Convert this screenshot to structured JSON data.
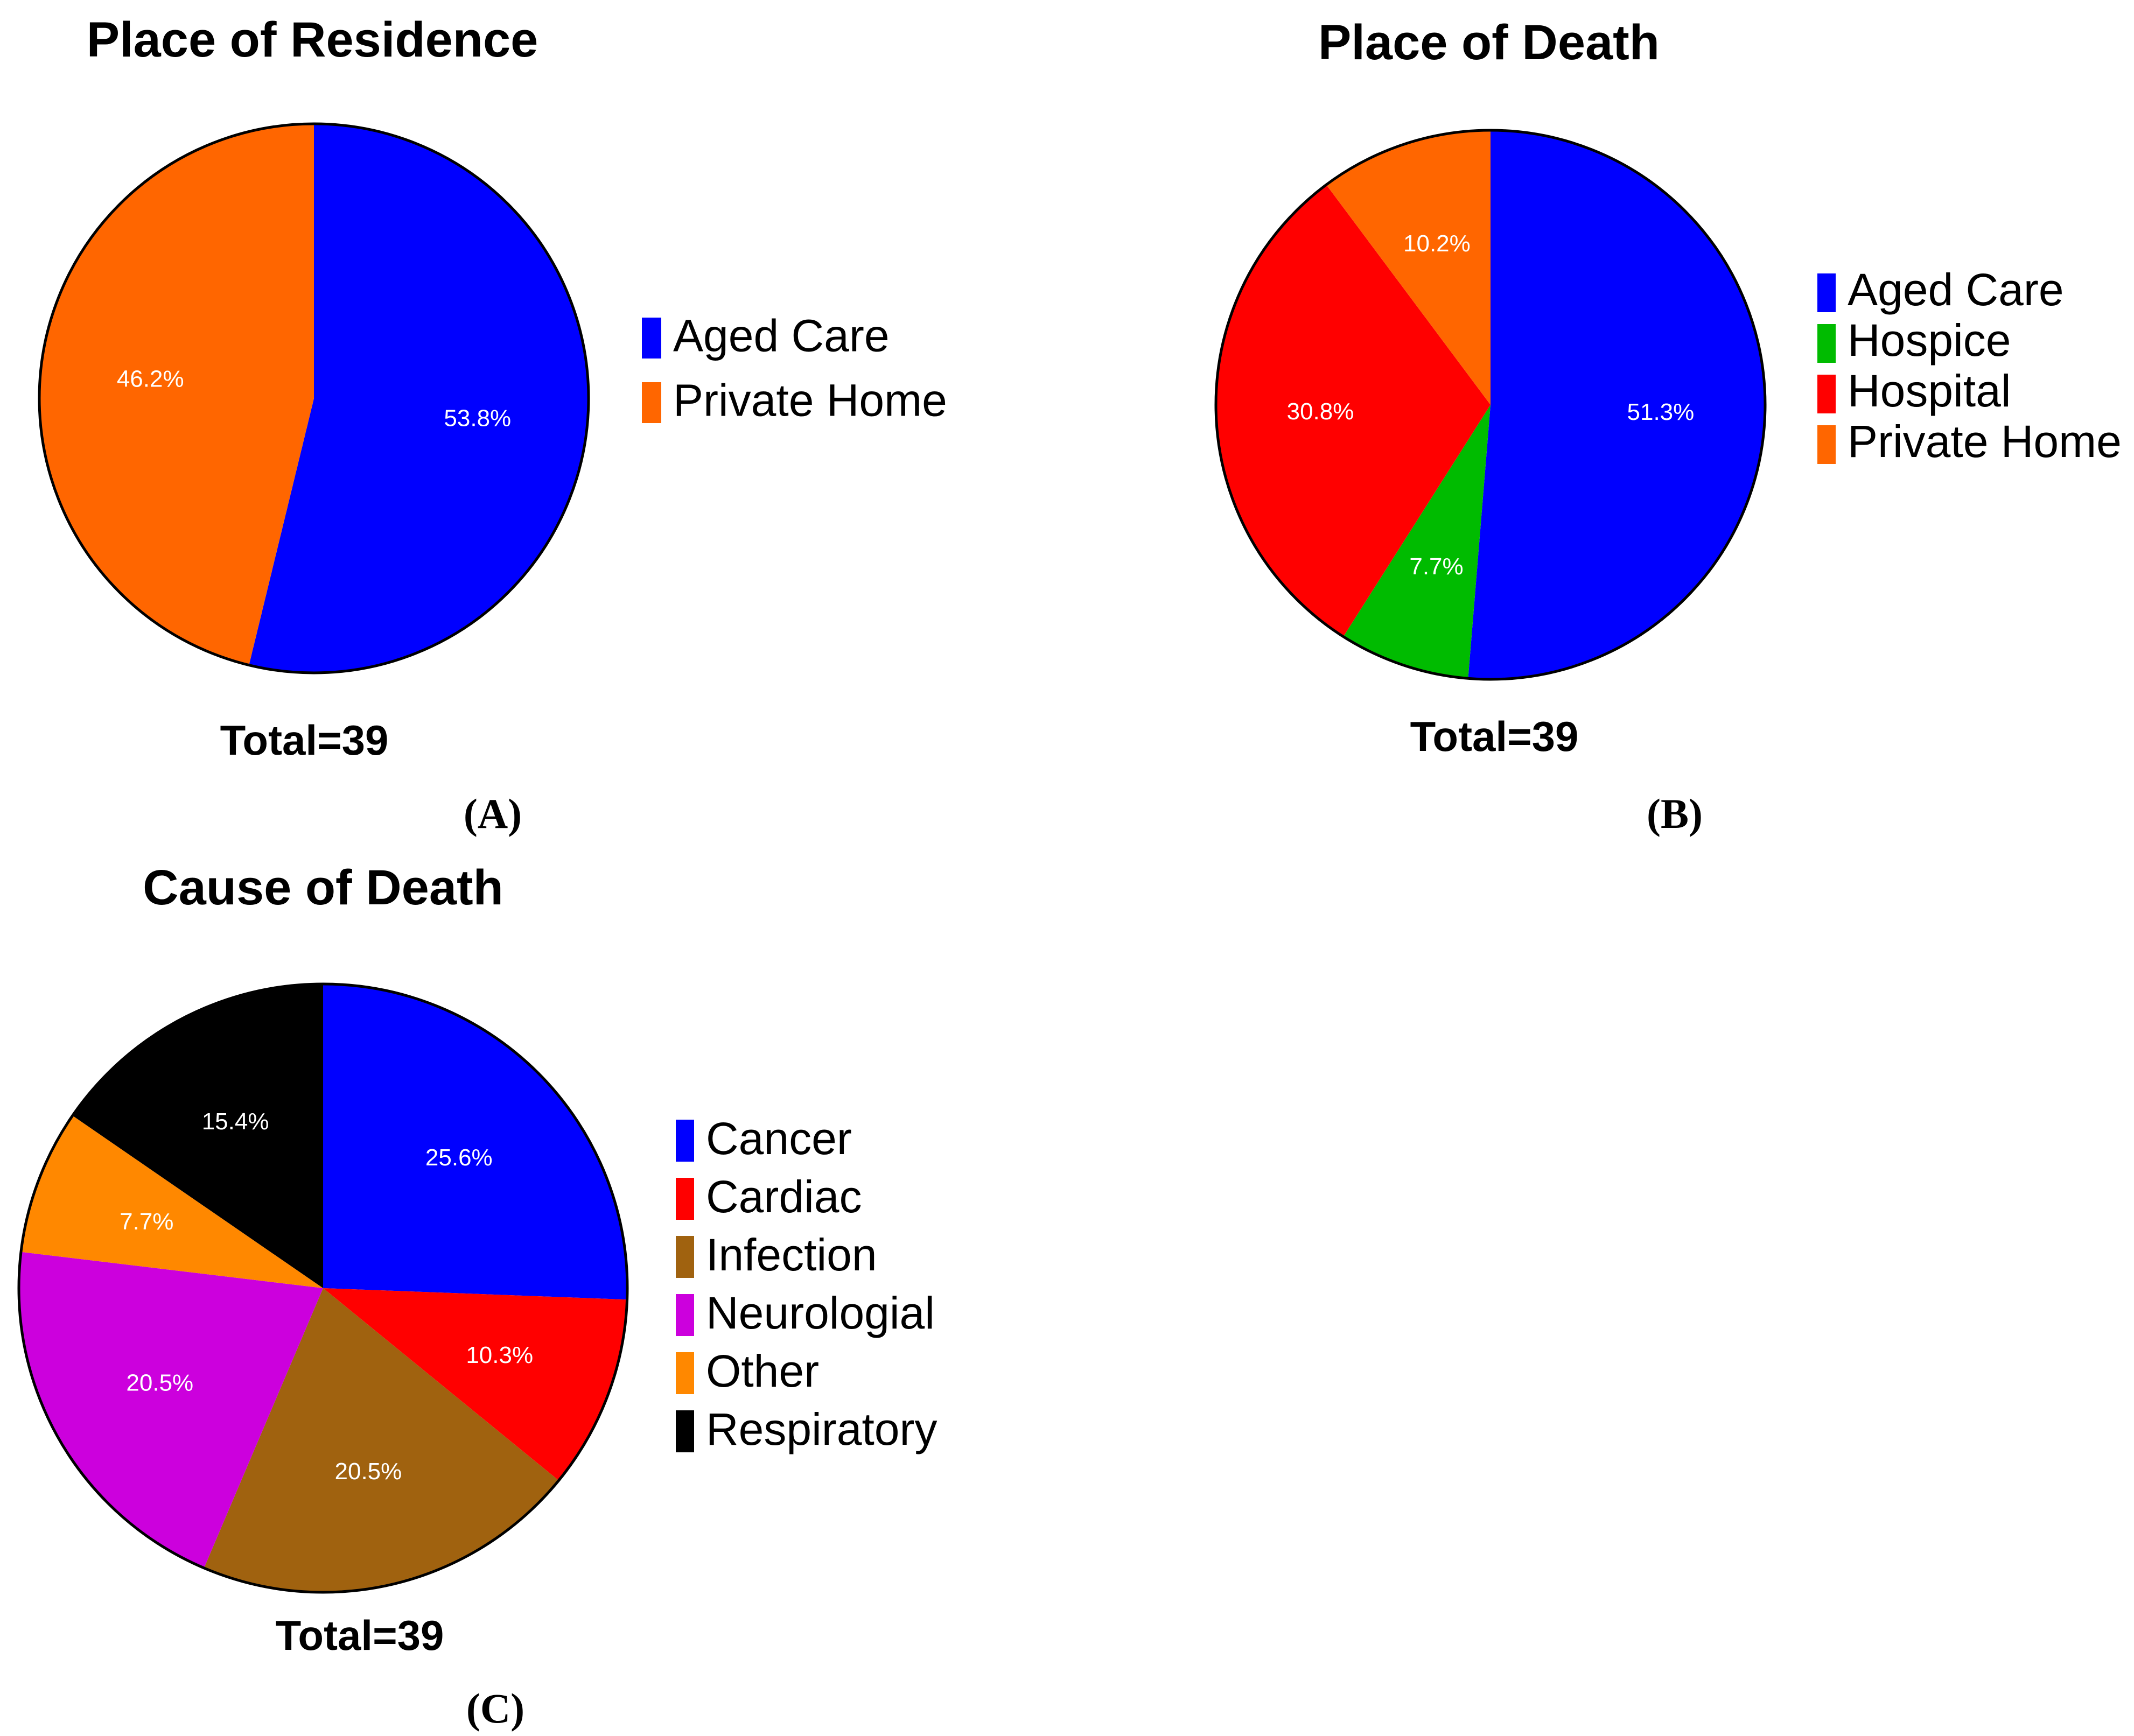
{
  "chart_data": [
    {
      "type": "pie",
      "title": "Place of Residence",
      "total_label": "Total=39",
      "panel_label": "(A)",
      "legend_position": "right",
      "slices": [
        {
          "name": "Aged Care",
          "value": 53.8,
          "label": "53.8%",
          "color": "#0000FF"
        },
        {
          "name": "Private Home",
          "value": 46.2,
          "label": "46.2%",
          "color": "#FF6600"
        }
      ]
    },
    {
      "type": "pie",
      "title": "Place of Death",
      "total_label": "Total=39",
      "panel_label": "(B)",
      "legend_position": "right",
      "slices": [
        {
          "name": "Aged Care",
          "value": 51.3,
          "label": "51.3%",
          "color": "#0000FF"
        },
        {
          "name": "Hospice",
          "value": 7.7,
          "label": "7.7%",
          "color": "#00BB00"
        },
        {
          "name": "Hospital",
          "value": 30.8,
          "label": "30.8%",
          "color": "#FF0000"
        },
        {
          "name": "Private Home",
          "value": 10.2,
          "label": "10.2%",
          "color": "#FF6600"
        }
      ]
    },
    {
      "type": "pie",
      "title": "Cause of Death",
      "total_label": "Total=39",
      "panel_label": "(C)",
      "legend_position": "right",
      "slices": [
        {
          "name": "Cancer",
          "value": 25.6,
          "label": "25.6%",
          "color": "#0000FF"
        },
        {
          "name": "Cardiac",
          "value": 10.3,
          "label": "10.3%",
          "color": "#FF0000"
        },
        {
          "name": "Infection",
          "value": 20.5,
          "label": "20.5%",
          "color": "#A0620F"
        },
        {
          "name": "Neurologial",
          "value": 20.5,
          "label": "20.5%",
          "color": "#CC00DD"
        },
        {
          "name": "Other",
          "value": 7.7,
          "label": "7.7%",
          "color": "#FF8800"
        },
        {
          "name": "Respiratory",
          "value": 15.4,
          "label": "15.4%",
          "color": "#000000"
        }
      ]
    }
  ]
}
